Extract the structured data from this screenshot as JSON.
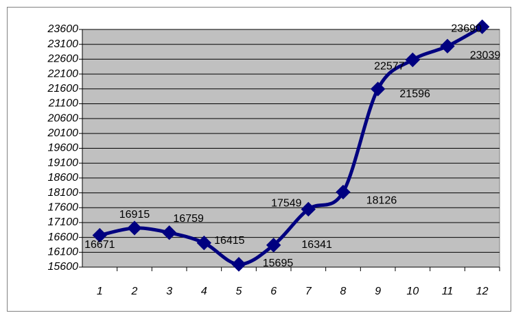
{
  "chart_data": {
    "type": "line",
    "categories": [
      "1",
      "2",
      "3",
      "4",
      "5",
      "6",
      "7",
      "8",
      "9",
      "10",
      "11",
      "12"
    ],
    "series": [
      {
        "color": "#000080",
        "values": [
          16671,
          16915,
          16759,
          16415,
          15695,
          16341,
          17549,
          18126,
          21596,
          22577,
          23039,
          23690
        ]
      }
    ],
    "ylim": [
      15600,
      23600
    ],
    "yticks": [
      15600,
      16100,
      16600,
      17100,
      17600,
      18100,
      18600,
      19100,
      19600,
      20100,
      20600,
      21100,
      21600,
      22100,
      22600,
      23100,
      23600
    ],
    "grid": true,
    "plot_background": "#c0c0c0",
    "smooth": true
  }
}
